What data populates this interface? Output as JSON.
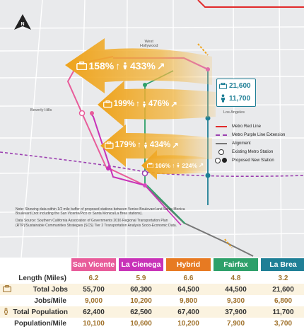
{
  "map": {
    "places": {
      "west_hollywood": "West\nHollywood",
      "beverly_hills": "Beverly Hills",
      "los_angeles": "Los Angeles"
    },
    "callouts": [
      {
        "jobs_pct": "158%",
        "pop_pct": "433%"
      },
      {
        "jobs_pct": "199%",
        "pop_pct": "476%"
      },
      {
        "jobs_pct": "179%",
        "pop_pct": "434%"
      },
      {
        "jobs_pct": "106%",
        "pop_pct": "224%"
      }
    ],
    "la_brea_box": {
      "jobs": "21,600",
      "population": "11,700"
    },
    "legend": [
      {
        "label": "Metro Red Line",
        "symbol": "red"
      },
      {
        "label": "Metro Purple Line Extension",
        "symbol": "purple"
      },
      {
        "label": "Alignment",
        "symbol": "gray"
      },
      {
        "label": "Existing Metro Station",
        "symbol": "ring"
      },
      {
        "label": "Proposed New Station",
        "symbol": "pair"
      }
    ],
    "note": "Note: Showing data within 1/2 mile buffer of proposed stations between Venice Boulevard and Santa Monica Boulevard (not including the San Vicente/Pico or Santa Monica/La Brea stations).",
    "source": "Data Source: Southern California Association of Governments 2016 Regional Transportation Plan (RTP)/Sustainable Communities Strategies (SCS) Tier 2 Transportation Analysis Socio-Economic Data.",
    "colors": {
      "san_vicente": "#e85c9a",
      "la_cienega": "#c832b8",
      "hybrid": "#e77a22",
      "fairfax": "#2ea06a",
      "la_brea": "#1f7f96",
      "arrow": "#efa51f",
      "red_line": "#e12a2a",
      "purple_line": "#9b3fb0"
    }
  },
  "table": {
    "headers": [
      "San Vicente",
      "La Cienega",
      "Hybrid",
      "Fairfax",
      "La Brea"
    ],
    "rows": [
      {
        "label": "Length (Miles)",
        "values": [
          "6.2",
          "5.9",
          "6.6",
          "4.8",
          "3.2"
        ],
        "icon": ""
      },
      {
        "label": "Total Jobs",
        "values": [
          "55,700",
          "60,300",
          "64,500",
          "44,500",
          "21,600"
        ],
        "icon": "briefcase-icon"
      },
      {
        "label": "Jobs/Mile",
        "values": [
          "9,000",
          "10,200",
          "9,800",
          "9,300",
          "6,800"
        ],
        "icon": ""
      },
      {
        "label": "Total Population",
        "values": [
          "62,400",
          "62,500",
          "67,400",
          "37,900",
          "11,700"
        ],
        "icon": "person-icon"
      },
      {
        "label": "Population/Mile",
        "values": [
          "10,100",
          "10,600",
          "10,200",
          "7,900",
          "3,700"
        ],
        "icon": ""
      }
    ]
  }
}
